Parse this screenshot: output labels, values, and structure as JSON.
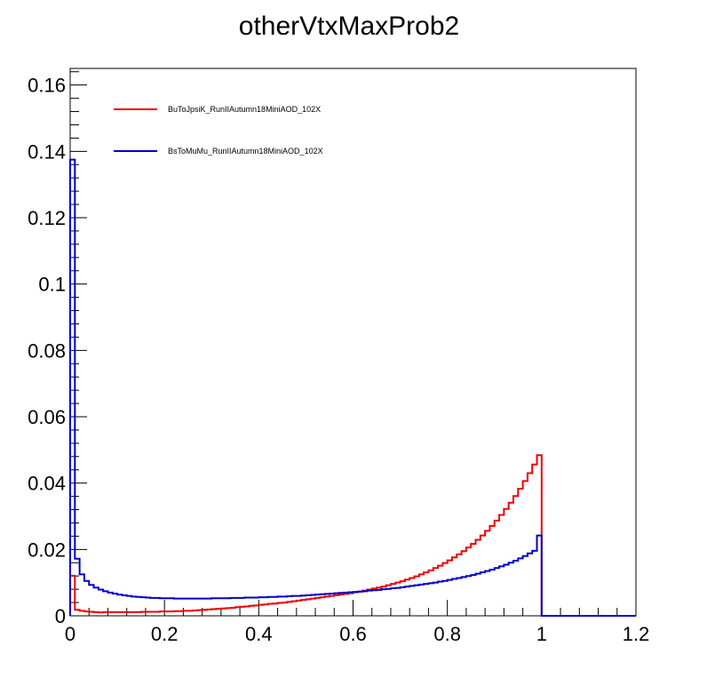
{
  "chart_data": {
    "type": "line",
    "title": "otherVtxMaxProb2",
    "xlabel": "",
    "ylabel": "",
    "xlim": [
      0,
      1.2
    ],
    "ylim": [
      0,
      0.165
    ],
    "x_ticks": [
      0,
      0.2,
      0.4,
      0.6,
      0.8,
      1,
      1.2
    ],
    "x_tick_labels": [
      "0",
      "0.2",
      "0.4",
      "0.6",
      "0.8",
      "1",
      "1.2"
    ],
    "y_ticks": [
      0,
      0.02,
      0.04,
      0.06,
      0.08,
      0.1,
      0.12,
      0.14,
      0.16
    ],
    "y_tick_labels": [
      "0",
      "0.02",
      "0.04",
      "0.06",
      "0.08",
      "0.1",
      "0.12",
      "0.14",
      "0.16"
    ],
    "grid": false,
    "legend_position": "top-left",
    "series": [
      {
        "name": "BuToJpsiK_RunIIAutumn18MiniAOD_102X",
        "color": "#ee0000",
        "bin_edges_start": 0,
        "bin_width": 0.01,
        "values": [
          0.0121,
          0.0018,
          0.0015,
          0.0013,
          0.0012,
          0.0011,
          0.001,
          0.0011,
          0.0011,
          0.0011,
          0.0011,
          0.0011,
          0.0011,
          0.0011,
          0.0011,
          0.0012,
          0.0012,
          0.0012,
          0.0012,
          0.0013,
          0.0013,
          0.0013,
          0.0014,
          0.0014,
          0.0015,
          0.0015,
          0.0016,
          0.0017,
          0.0018,
          0.0019,
          0.002,
          0.0021,
          0.0022,
          0.0023,
          0.0024,
          0.0026,
          0.0027,
          0.0028,
          0.003,
          0.0031,
          0.0033,
          0.0034,
          0.0036,
          0.0037,
          0.0039,
          0.004,
          0.0042,
          0.0044,
          0.0046,
          0.0048,
          0.005,
          0.0052,
          0.0054,
          0.0056,
          0.0058,
          0.006,
          0.0062,
          0.0064,
          0.0066,
          0.0068,
          0.0071,
          0.0073,
          0.0076,
          0.0079,
          0.0082,
          0.0085,
          0.0088,
          0.0092,
          0.0096,
          0.01,
          0.0104,
          0.0109,
          0.0114,
          0.0119,
          0.0125,
          0.0131,
          0.0137,
          0.0144,
          0.0151,
          0.0159,
          0.0167,
          0.0176,
          0.0185,
          0.0195,
          0.0206,
          0.0217,
          0.0229,
          0.0242,
          0.0256,
          0.0271,
          0.0287,
          0.0304,
          0.0322,
          0.0341,
          0.0361,
          0.0383,
          0.0406,
          0.043,
          0.0456,
          0.0484,
          0,
          0,
          0,
          0,
          0,
          0,
          0,
          0,
          0,
          0,
          0,
          0,
          0,
          0,
          0,
          0,
          0,
          0,
          0,
          0
        ]
      },
      {
        "name": "BsToMuMu_RunIIAutumn18MiniAOD_102X",
        "color": "#0000cc",
        "bin_edges_start": 0,
        "bin_width": 0.01,
        "values": [
          0.1375,
          0.0172,
          0.0125,
          0.0105,
          0.0093,
          0.0085,
          0.0079,
          0.0074,
          0.007,
          0.0067,
          0.0064,
          0.0062,
          0.006,
          0.0058,
          0.0057,
          0.0056,
          0.0055,
          0.0054,
          0.0054,
          0.0053,
          0.0053,
          0.0053,
          0.0052,
          0.0052,
          0.0052,
          0.0052,
          0.0052,
          0.0052,
          0.0052,
          0.0052,
          0.0053,
          0.0053,
          0.0053,
          0.0053,
          0.0054,
          0.0054,
          0.0054,
          0.0055,
          0.0055,
          0.0055,
          0.0056,
          0.0056,
          0.0057,
          0.0057,
          0.0058,
          0.0058,
          0.0059,
          0.006,
          0.006,
          0.0061,
          0.0062,
          0.0063,
          0.0064,
          0.0065,
          0.0066,
          0.0067,
          0.0068,
          0.0069,
          0.007,
          0.0071,
          0.0072,
          0.0073,
          0.0074,
          0.0076,
          0.0077,
          0.0078,
          0.008,
          0.0081,
          0.0083,
          0.0084,
          0.0086,
          0.0088,
          0.009,
          0.0092,
          0.0094,
          0.0096,
          0.0098,
          0.01,
          0.0103,
          0.0105,
          0.0108,
          0.0111,
          0.0114,
          0.0117,
          0.012,
          0.0123,
          0.0127,
          0.0131,
          0.0135,
          0.0139,
          0.0144,
          0.0149,
          0.0154,
          0.016,
          0.0166,
          0.0173,
          0.018,
          0.0188,
          0.0196,
          0.0242,
          0,
          0,
          0,
          0,
          0,
          0,
          0,
          0,
          0,
          0,
          0,
          0,
          0,
          0,
          0,
          0,
          0,
          0,
          0,
          0
        ]
      }
    ]
  }
}
